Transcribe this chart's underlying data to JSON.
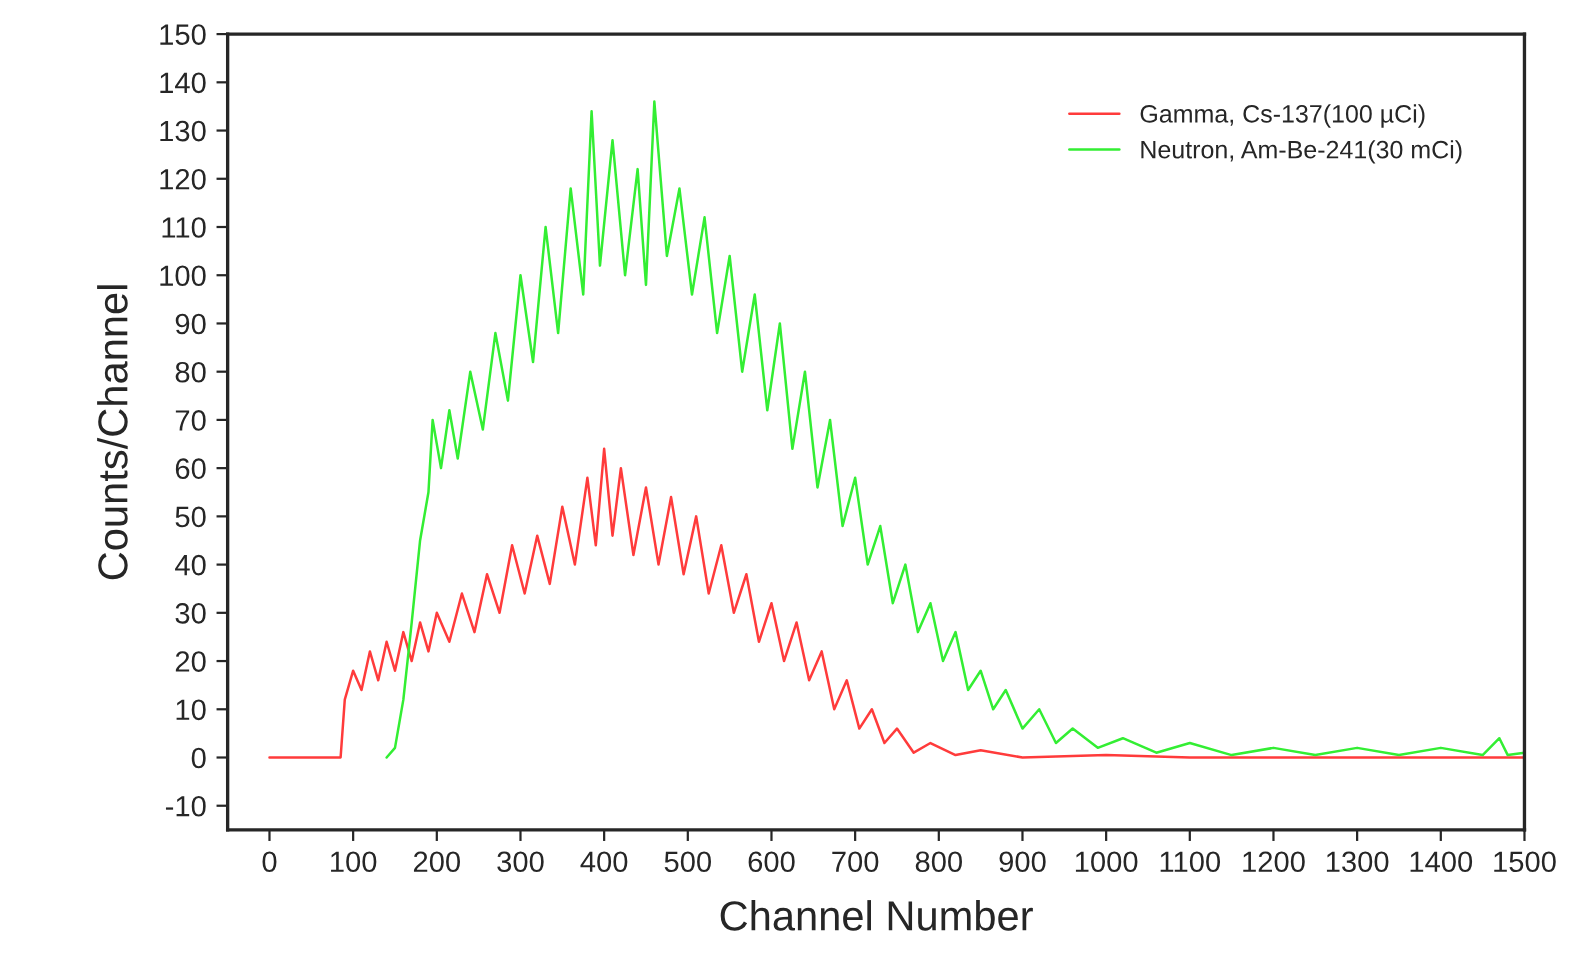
{
  "chart_data": {
    "type": "line",
    "xlabel": "Channel Number",
    "ylabel": "Counts/Channel",
    "xlim": [
      -50,
      1500
    ],
    "ylim": [
      -15,
      150
    ],
    "xticks": [
      0,
      100,
      200,
      300,
      400,
      500,
      600,
      700,
      800,
      900,
      1000,
      1100,
      1200,
      1300,
      1400,
      1500
    ],
    "yticks": [
      -10,
      0,
      10,
      20,
      30,
      40,
      50,
      60,
      70,
      80,
      90,
      100,
      110,
      120,
      130,
      140,
      150
    ],
    "grid": false,
    "legend": "top right",
    "line_style": "solid",
    "marker": "none",
    "series": [
      {
        "name": "Gamma, Cs-137(100 µCi)",
        "color": "#ff3b3b",
        "x": [
          0,
          85,
          90,
          100,
          110,
          120,
          130,
          140,
          150,
          160,
          170,
          180,
          190,
          200,
          215,
          230,
          245,
          260,
          275,
          290,
          305,
          320,
          335,
          350,
          365,
          380,
          390,
          400,
          410,
          420,
          435,
          450,
          465,
          480,
          495,
          510,
          525,
          540,
          555,
          570,
          585,
          600,
          615,
          630,
          645,
          660,
          675,
          690,
          705,
          720,
          735,
          750,
          770,
          790,
          820,
          850,
          900,
          1000,
          1100,
          1500
        ],
        "values": [
          0,
          0,
          12,
          18,
          14,
          22,
          16,
          24,
          18,
          26,
          20,
          28,
          22,
          30,
          24,
          34,
          26,
          38,
          30,
          44,
          34,
          46,
          36,
          52,
          40,
          58,
          44,
          64,
          46,
          60,
          42,
          56,
          40,
          54,
          38,
          50,
          34,
          44,
          30,
          38,
          24,
          32,
          20,
          28,
          16,
          22,
          10,
          16,
          6,
          10,
          3,
          6,
          1,
          3,
          0.5,
          1.5,
          0,
          0.5,
          0,
          0
        ]
      },
      {
        "name": "Neutron, Am-Be-241(30 mCi)",
        "color": "#33ee33",
        "x": [
          140,
          150,
          160,
          165,
          170,
          180,
          190,
          195,
          205,
          215,
          225,
          240,
          255,
          270,
          285,
          300,
          315,
          330,
          345,
          360,
          375,
          385,
          395,
          410,
          425,
          440,
          450,
          460,
          475,
          490,
          505,
          520,
          535,
          550,
          565,
          580,
          595,
          610,
          625,
          640,
          655,
          670,
          685,
          700,
          715,
          730,
          745,
          760,
          775,
          790,
          805,
          820,
          835,
          850,
          865,
          880,
          900,
          920,
          940,
          960,
          990,
          1020,
          1060,
          1100,
          1150,
          1200,
          1250,
          1300,
          1350,
          1400,
          1450,
          1470,
          1480,
          1500
        ],
        "values": [
          0,
          2,
          12,
          20,
          28,
          45,
          55,
          70,
          60,
          72,
          62,
          80,
          68,
          88,
          74,
          100,
          82,
          110,
          88,
          118,
          96,
          134,
          102,
          128,
          100,
          122,
          98,
          136,
          104,
          118,
          96,
          112,
          88,
          104,
          80,
          96,
          72,
          90,
          64,
          80,
          56,
          70,
          48,
          58,
          40,
          48,
          32,
          40,
          26,
          32,
          20,
          26,
          14,
          18,
          10,
          14,
          6,
          10,
          3,
          6,
          2,
          4,
          1,
          3,
          0.5,
          2,
          0.5,
          2,
          0.5,
          2,
          0.5,
          4,
          0.5,
          1
        ]
      }
    ]
  }
}
